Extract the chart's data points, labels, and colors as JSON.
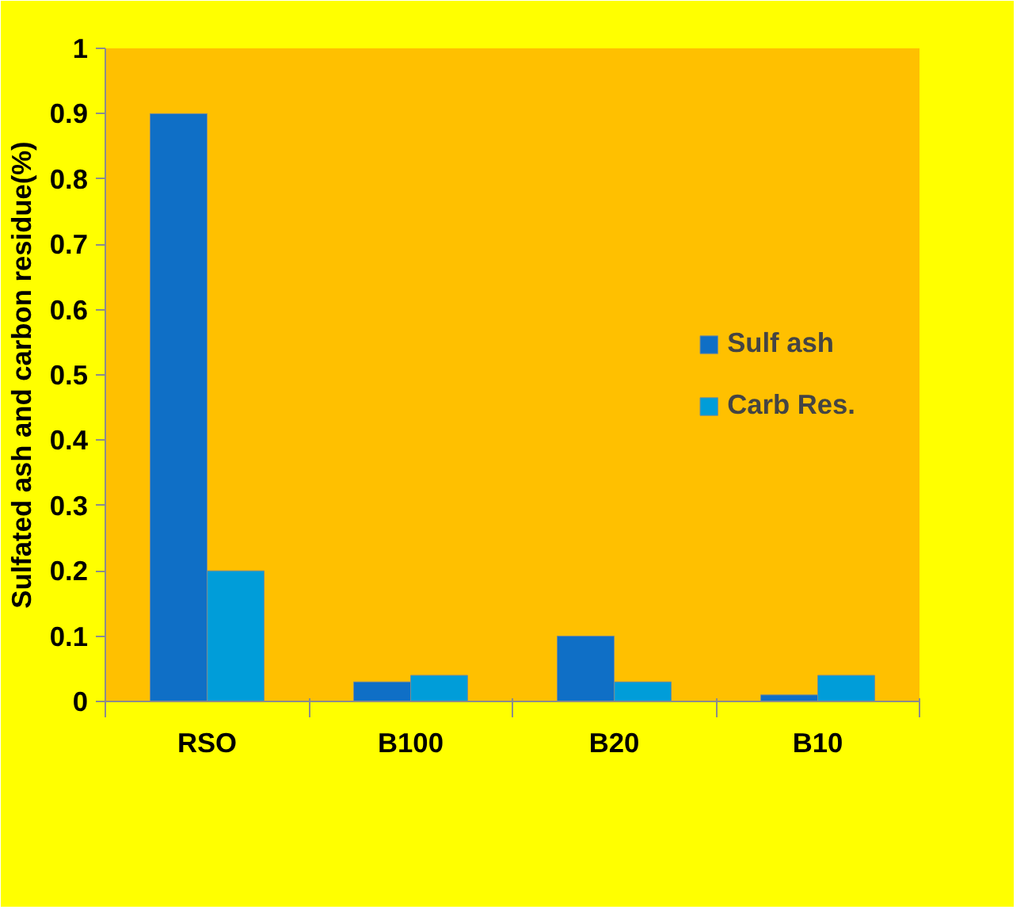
{
  "chart_data": {
    "type": "bar",
    "ylabel": "Sulfated ash and carbon residue(%)",
    "categories": [
      "RSO",
      "B100",
      "B20",
      "B10"
    ],
    "series": [
      {
        "name": "Sulf ash",
        "color": "#0f6fc6",
        "values": [
          0.9,
          0.03,
          0.1,
          0.01
        ]
      },
      {
        "name": "Carb Res.",
        "color": "#009dd9",
        "values": [
          0.2,
          0.04,
          0.03,
          0.04
        ]
      }
    ],
    "ylim": [
      0,
      1
    ],
    "yticks": [
      0,
      0.1,
      0.2,
      0.3,
      0.4,
      0.5,
      0.6,
      0.7,
      0.8,
      0.9,
      1
    ],
    "grid": false,
    "legend": "right"
  }
}
